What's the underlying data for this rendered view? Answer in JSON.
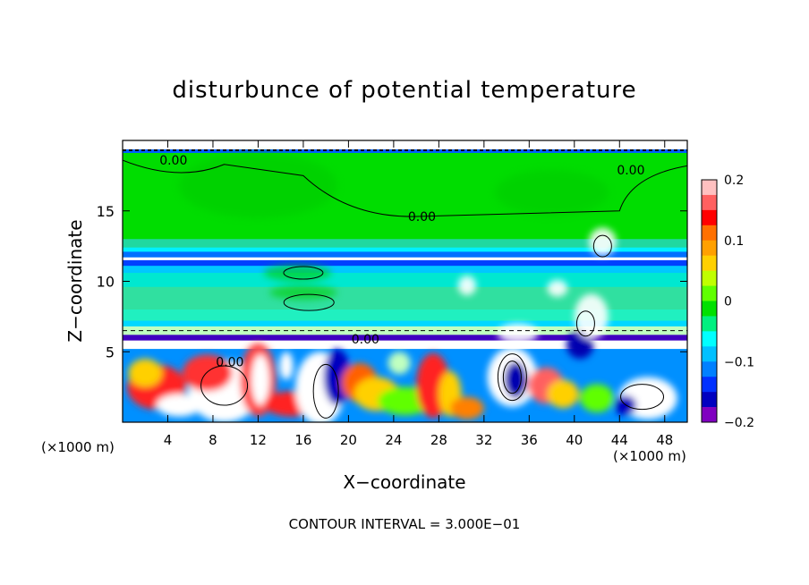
{
  "chart_data": {
    "type": "heatmap",
    "title": "disturbunce of potential temperature",
    "xlabel": "X−coordinate",
    "ylabel": "Z−coordinate",
    "x_unit_label": "(×1000 m)",
    "z_unit_label": "(×1000 m)",
    "xlim": [
      0,
      50
    ],
    "ylim": [
      0,
      20
    ],
    "x_ticks": [
      4,
      8,
      12,
      16,
      20,
      24,
      28,
      32,
      36,
      40,
      44,
      48
    ],
    "y_ticks": [
      5,
      10,
      15
    ],
    "colorbar": {
      "range": [
        -0.2,
        0.2
      ],
      "tick_values": [
        0.2,
        0.1,
        0,
        -0.1,
        -0.2
      ],
      "tick_labels": [
        "0.2",
        "0.1",
        "0",
        "−0.1",
        "−0.2"
      ],
      "colors": [
        "#ffc0c0",
        "#ff6060",
        "#ff0000",
        "#ff7000",
        "#ffa000",
        "#ffd000",
        "#c0ff00",
        "#60ff00",
        "#00e000",
        "#00f080",
        "#00ffff",
        "#00c0ff",
        "#0080ff",
        "#0030ff",
        "#0000c0",
        "#8000c0"
      ]
    },
    "contour_labels": [
      {
        "text": "0.00",
        "x": 4.5,
        "z": 18.6
      },
      {
        "text": "0.00",
        "x": 26.5,
        "z": 14.6
      },
      {
        "text": "0.00",
        "x": 45.0,
        "z": 17.9
      },
      {
        "text": "0.00",
        "x": 21.5,
        "z": 5.9
      },
      {
        "text": "0.00",
        "x": 9.5,
        "z": 4.3
      }
    ],
    "contour_interval": "CONTOUR INTERVAL = 3.000E−01"
  }
}
